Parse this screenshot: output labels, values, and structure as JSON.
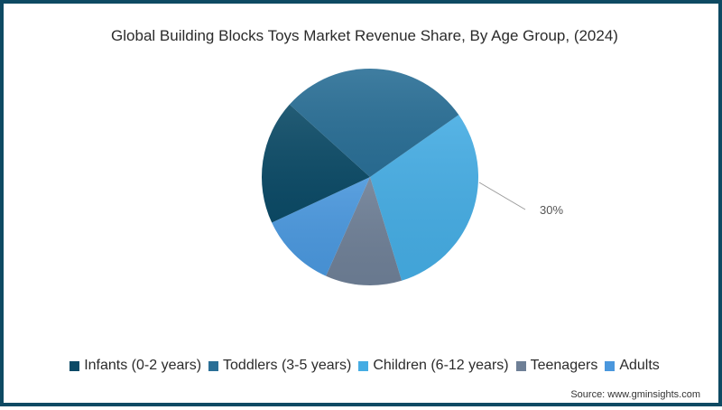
{
  "title": "Global Building Blocks Toys Market Revenue Share, By Age Group, (2024)",
  "colors": {
    "border": "#0e4a63",
    "infants": "#0b4a66",
    "toddlers": "#2a6f96",
    "children": "#45ace3",
    "teenagers": "#6e7f96",
    "adults": "#4a97dd"
  },
  "callout": {
    "label": "30%",
    "segment": "Children (6-12 years)"
  },
  "legend": [
    {
      "label": "Infants (0-2 years)",
      "color": "#0b4a66"
    },
    {
      "label": "Toddlers (3-5 years)",
      "color": "#2a6f96"
    },
    {
      "label": "Children (6-12 years)",
      "color": "#45ace3"
    },
    {
      "label": "Teenagers",
      "color": "#6e7f96"
    },
    {
      "label": "Adults",
      "color": "#4a97dd"
    }
  ],
  "source": "Source: www.gminsights.com",
  "chart_data": {
    "type": "pie",
    "title": "Global Building Blocks Toys Market Revenue Share, By Age Group, (2024)",
    "categories": [
      "Infants (0-2 years)",
      "Toddlers (3-5 years)",
      "Children (6-12 years)",
      "Teenagers",
      "Adults"
    ],
    "values": [
      18.6,
      28.6,
      30,
      11.4,
      11.4
    ],
    "unit": "%",
    "annotations": [
      {
        "category": "Children (6-12 years)",
        "text": "30%"
      }
    ],
    "legend_position": "bottom",
    "start_angle_deg_clockwise_from_top": 55,
    "order_clockwise": [
      "Children (6-12 years)",
      "Teenagers",
      "Adults",
      "Infants (0-2 years)",
      "Toddlers (3-5 years)"
    ]
  }
}
